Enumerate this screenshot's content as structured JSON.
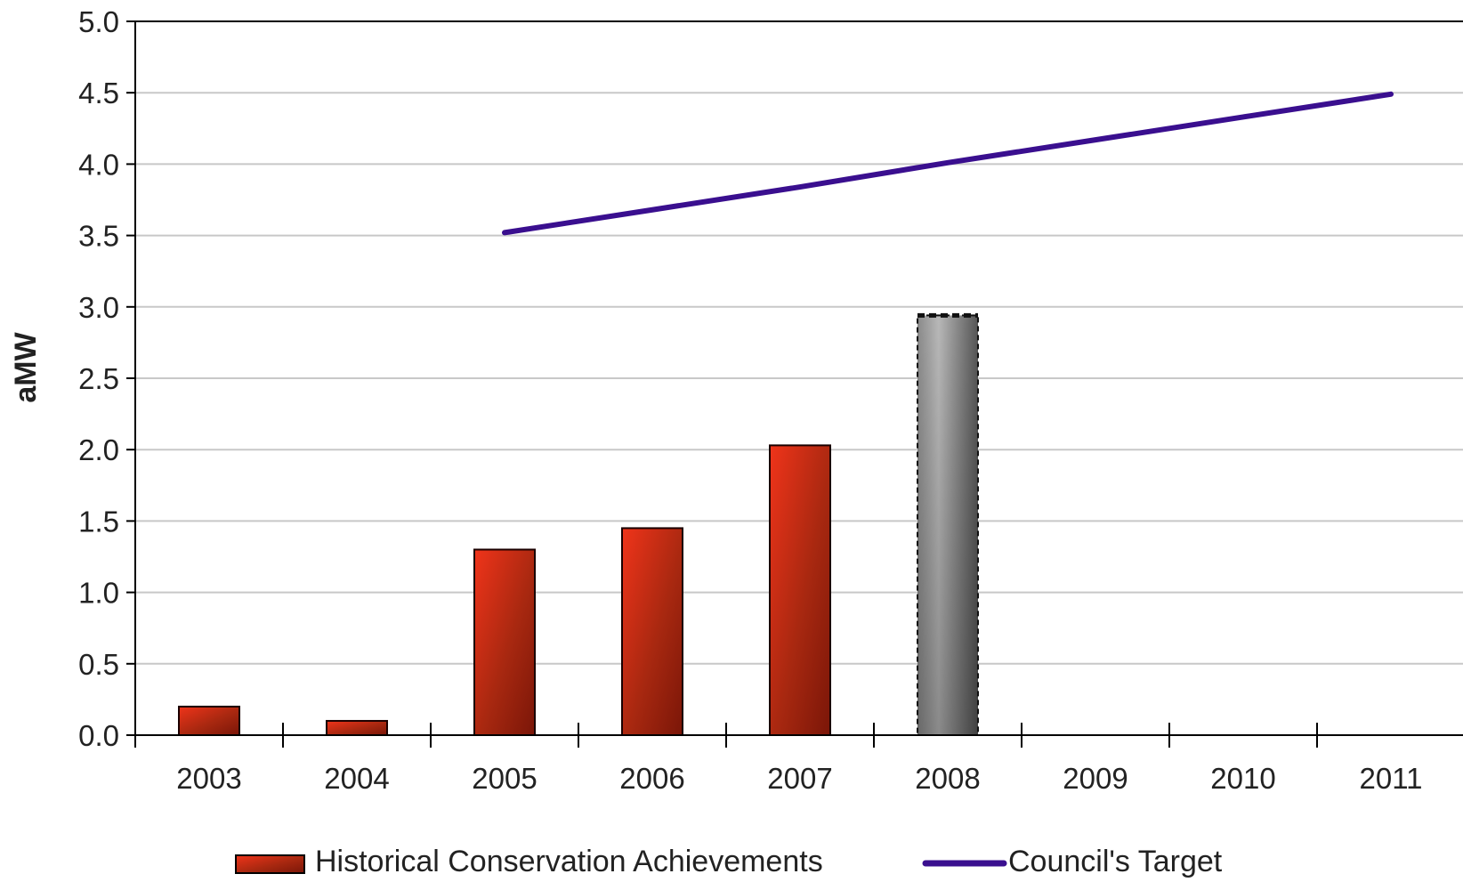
{
  "chart_data": {
    "type": "bar",
    "title": "",
    "xlabel": "",
    "ylabel": "aMW",
    "ylim": [
      0,
      5
    ],
    "y_ticks": [
      "0.0",
      "0.5",
      "1.0",
      "1.5",
      "2.0",
      "2.5",
      "3.0",
      "3.5",
      "4.0",
      "4.5",
      "5.0"
    ],
    "categories": [
      "2003",
      "2004",
      "2005",
      "2006",
      "2007",
      "2008",
      "2009",
      "2010",
      "2011"
    ],
    "grid": "horizontal",
    "legend_position": "bottom",
    "series": [
      {
        "name": "Historical Conservation Achievements",
        "type": "bar",
        "color": "#b52a10",
        "values": [
          0.2,
          0.1,
          1.3,
          1.45,
          2.03,
          2.94,
          null,
          null,
          null
        ],
        "projected": [
          false,
          false,
          false,
          false,
          false,
          true,
          false,
          false,
          false
        ],
        "projected_color": "#808080"
      },
      {
        "name": "Council's Target",
        "type": "line",
        "color": "#3a0f8f",
        "values": [
          null,
          null,
          3.52,
          3.68,
          3.84,
          4.01,
          4.17,
          4.33,
          4.49
        ]
      }
    ]
  }
}
